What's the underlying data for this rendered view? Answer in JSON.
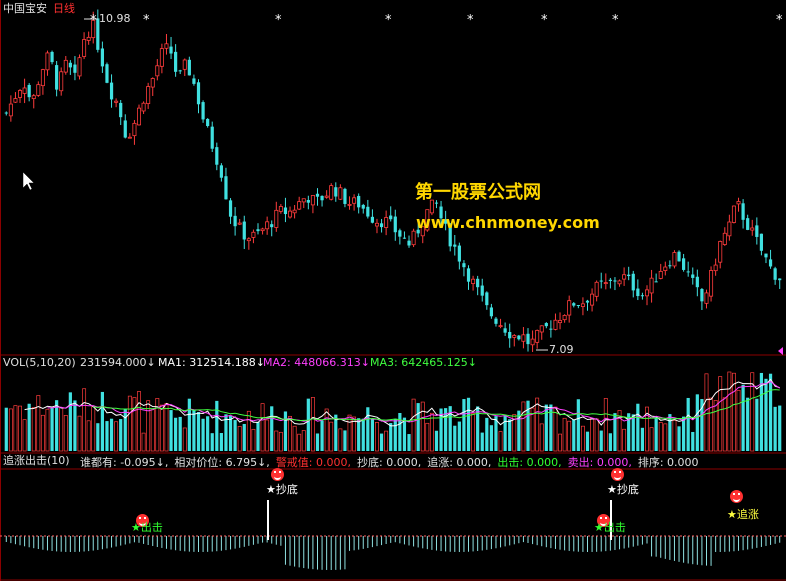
{
  "header": {
    "stock_name": "中国宝安",
    "period": "日线"
  },
  "colors": {
    "up": "#ff3c3c",
    "down": "#40e0e0",
    "grid": "#8b0000",
    "label_white": "#e0e0e0",
    "ma1": "#ffffff",
    "ma2": "#ff40ff",
    "ma3": "#40ff40",
    "signal_red": "#ff3030",
    "signal_green": "#30ff30",
    "signal_magenta": "#ff40ff",
    "watermark": "#ffd700"
  },
  "price_panel": {
    "high_label": "10.98",
    "low_label": "7.09",
    "watermark_line1": "第一股票公式网",
    "watermark_line2": "www.chnmoney.com",
    "star_glyph": "*"
  },
  "volume_panel": {
    "name": "VOL(5,10,20)",
    "vol_value": "231594.000↓",
    "ma1_label": "MA1: 312514.188↓",
    "ma2_label": "MA2: 448066.313↓",
    "ma3_label": "MA3: 642465.125↓"
  },
  "indicator_panel": {
    "name": "追涨出击(10)",
    "items": [
      {
        "text": "谁都有: -0.095↓,",
        "color": "#e0e0e0"
      },
      {
        "text": "相对价位: 6.795↓,",
        "color": "#e0e0e0"
      },
      {
        "text": "警戒值: 0.000,",
        "color": "#ff3030"
      },
      {
        "text": "抄底: 0.000,",
        "color": "#e0e0e0"
      },
      {
        "text": "追涨: 0.000,",
        "color": "#e0e0e0"
      },
      {
        "text": "出击: 0.000,",
        "color": "#30ff30"
      },
      {
        "text": "卖出: 0.000,",
        "color": "#ff40ff"
      },
      {
        "text": "排序: 0.000",
        "color": "#e0e0e0"
      }
    ],
    "signals": {
      "chuji": "出击",
      "chaodi": "抄底",
      "zhuizhang": "追涨"
    }
  },
  "chart_data": {
    "type": "candlestick",
    "title": "中国宝安 日线",
    "price_range": [
      7.0,
      11.1
    ],
    "high": 10.98,
    "low": 7.09,
    "close_series": [
      9.9,
      10.1,
      10.3,
      10.0,
      10.4,
      10.6,
      10.2,
      10.5,
      10.3,
      10.8,
      10.98,
      10.6,
      10.2,
      10.0,
      9.6,
      9.8,
      10.1,
      10.3,
      10.6,
      10.7,
      10.3,
      10.5,
      10.2,
      9.8,
      9.5,
      9.2,
      8.7,
      8.5,
      8.4,
      8.4,
      8.5,
      8.6,
      8.7,
      8.7,
      8.8,
      8.9,
      8.8,
      8.9,
      9.0,
      8.9,
      8.8,
      8.8,
      8.7,
      8.6,
      8.6,
      8.5,
      8.4,
      8.3,
      8.5,
      8.7,
      8.8,
      8.5,
      8.3,
      8.1,
      7.9,
      7.7,
      7.5,
      7.4,
      7.3,
      7.2,
      7.2,
      7.09,
      7.2,
      7.3,
      7.4,
      7.5,
      7.6,
      7.6,
      7.7,
      7.8,
      7.8,
      7.9,
      7.9,
      7.8,
      7.7,
      7.8,
      8.0,
      8.1,
      8.2,
      8.0,
      7.8,
      7.6,
      7.9,
      8.3,
      8.5,
      8.8,
      8.6,
      8.4,
      8.2,
      8.0,
      7.9
    ]
  }
}
